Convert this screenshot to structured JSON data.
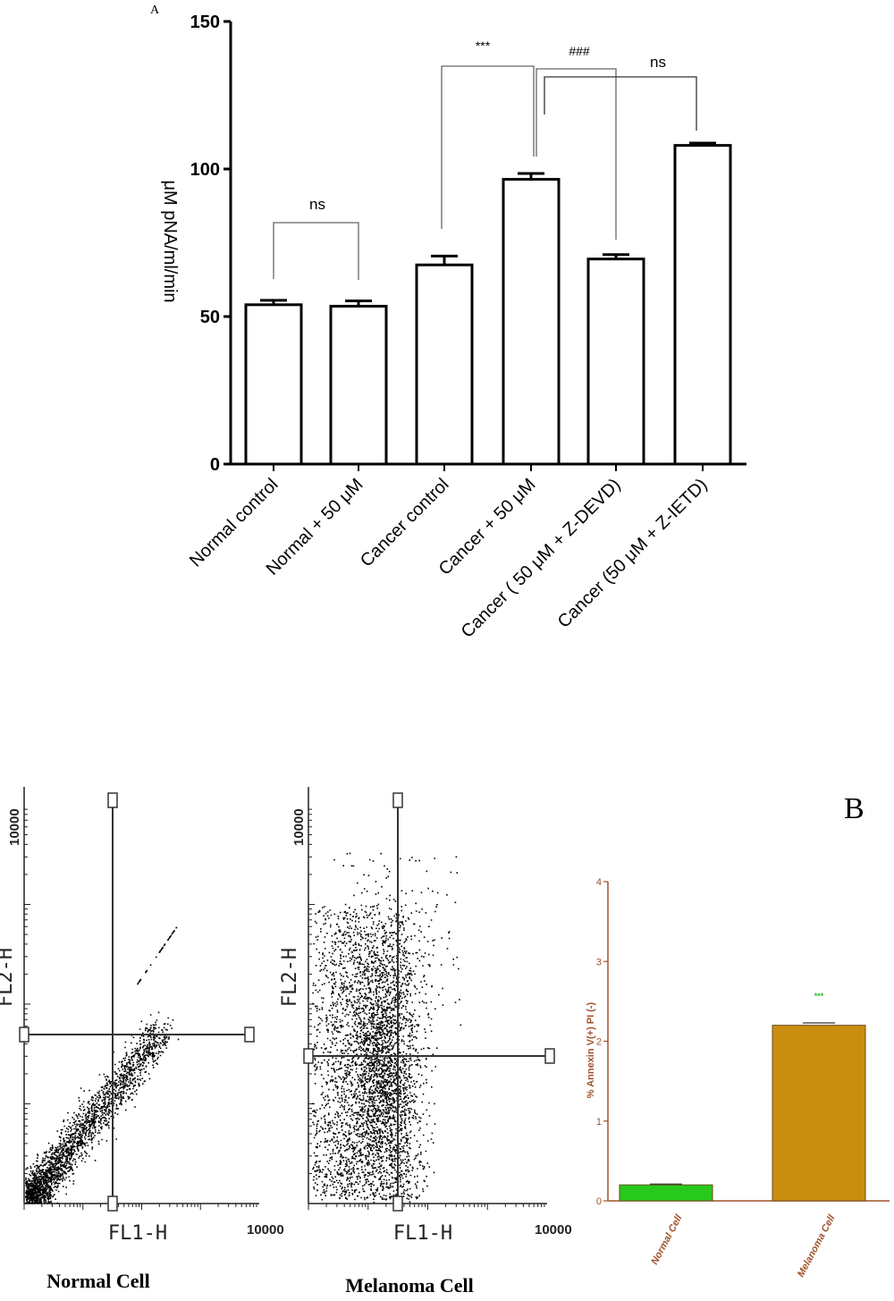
{
  "panel_a": {
    "label": "A",
    "chart_data": {
      "type": "bar",
      "ylabel": "μM pNA/ml/min",
      "ylim": [
        0,
        150
      ],
      "yticks": [
        "0",
        "50",
        "100",
        "150"
      ],
      "categories": [
        "Normal control",
        "Normal + 50 μM",
        "Cancer control",
        "Cancer + 50 μM",
        "Cancer ( 50 μM + Z-DEVD)",
        "Cancer (50 μM + Z-IETD)"
      ],
      "values": [
        54,
        53.5,
        67.5,
        96.5,
        69.5,
        108
      ],
      "errors": [
        1.5,
        1.8,
        3,
        2,
        1.5,
        0.8
      ],
      "significance": [
        {
          "from": 0,
          "to": 1,
          "label": "ns"
        },
        {
          "from": 2,
          "to": 3,
          "label": "***"
        },
        {
          "from": 3,
          "to": 4,
          "label": "###"
        },
        {
          "from": 3,
          "to": 5,
          "label": "ns"
        }
      ]
    }
  },
  "panel_b": {
    "label": "B",
    "flow_plots": [
      {
        "caption": "Normal Cell",
        "ylabel": "FL2-H",
        "xlabel": "FL1-H",
        "ymax_label": "10000",
        "xmax_label": "10000"
      },
      {
        "caption": "Melanoma Cell",
        "ylabel": "FL2-H",
        "xlabel": "FL1-H",
        "ymax_label": "10000",
        "xmax_label": "10000"
      }
    ],
    "chart_data": {
      "type": "bar",
      "ylabel": "% Annexin V(+) PI (-)",
      "ylim": [
        0,
        4
      ],
      "yticks": [
        "0",
        "1",
        "2",
        "3",
        "4"
      ],
      "categories": [
        "Normal Cell",
        "Melanoma Cell"
      ],
      "values": [
        0.2,
        2.2
      ],
      "errors": [
        0.01,
        0.03
      ],
      "colors": [
        "#27c91c",
        "#c98e0f"
      ],
      "annotation": "***",
      "annotation_color": "#2eb82e"
    }
  }
}
